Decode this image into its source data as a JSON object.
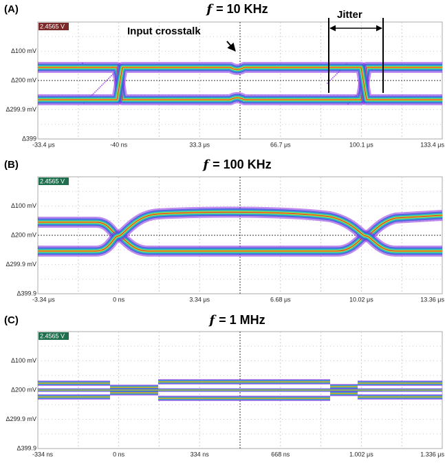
{
  "figure": {
    "panels": [
      {
        "label": "(A)",
        "title_symbol": "f",
        "title_rest": "= 10 KHz",
        "badge": "2.4565 V",
        "y_labels": [
          "Δ100 mV",
          "Δ200 mV",
          "Δ299.9 mV",
          "Δ399"
        ],
        "x_labels": [
          "-33.4 μs",
          "-40 ns",
          "33.3 μs",
          "66.7 μs",
          "100.1 μs",
          "133.4 μs"
        ],
        "annotations": [
          "Input crosstalk",
          "Jitter"
        ]
      },
      {
        "label": "(B)",
        "title_symbol": "f",
        "title_rest": "= 100 KHz",
        "badge": "2.4565 V",
        "y_labels": [
          "Δ100 mV",
          "Δ200 mV",
          "Δ299.9 mV",
          "Δ399.9"
        ],
        "x_labels": [
          "-3.34 μs",
          "0 ns",
          "3.34 μs",
          "6.68 μs",
          "10.02 μs",
          "13.36 μs"
        ]
      },
      {
        "label": "(C)",
        "title_symbol": "f",
        "title_rest": "= 1 MHz",
        "badge": "2.4565 V",
        "y_labels": [
          "Δ100 mV",
          "Δ200 mV",
          "Δ299.9 mV",
          "Δ399.9"
        ],
        "x_labels": [
          "-334 ns",
          "0 ns",
          "334 ns",
          "668 ns",
          "1.002 μs",
          "1.336 μs"
        ]
      }
    ]
  }
}
